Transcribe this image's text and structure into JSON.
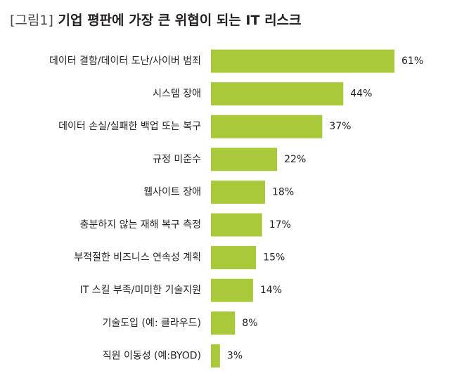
{
  "title_prefix": "[그림1]",
  "title_text": "기업 평판에 가장 큰 위협이 되는 IT 리스크",
  "colors": {
    "bar": "#a7c93a",
    "text": "#231f20"
  },
  "chart_data": {
    "type": "bar",
    "orientation": "horizontal",
    "title": "[그림1] 기업 평판에 가장 큰 위협이 되는 IT 리스크",
    "categories": [
      "데이터 결함/데이터 도난/사이버 범죄",
      "시스템 장애",
      "데이터 손실/실패한 백업 또는 복구",
      "규정 미준수",
      "웹사이트 장애",
      "충분하지 않는 재해 복구 측정",
      "부적절한 비즈니스 연속성 계획",
      "IT 스킬 부족/미미한 기술지원",
      "기술도입 (예: 클라우드)",
      "직원 이동성 (예:BYOD)"
    ],
    "values": [
      61,
      44,
      37,
      22,
      18,
      17,
      15,
      14,
      8,
      3
    ],
    "value_labels": [
      "61%",
      "44%",
      "37%",
      "22%",
      "18%",
      "17%",
      "15%",
      "14%",
      "8%",
      "3%"
    ],
    "xlim": [
      0,
      61
    ],
    "grid": false,
    "legend": "none"
  }
}
